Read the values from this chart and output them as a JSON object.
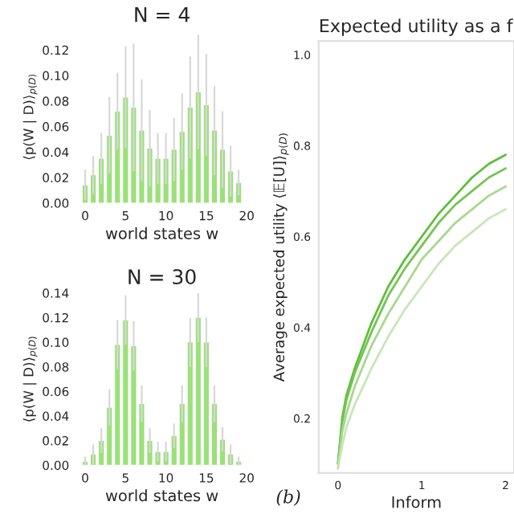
{
  "chart_data": [
    {
      "type": "bar",
      "title": "N = 4",
      "xlabel": "world states w",
      "ylabel": "⟨p(W | D)⟩$_{p(D)}$",
      "x": [
        0,
        1,
        2,
        3,
        4,
        5,
        6,
        7,
        8,
        9,
        10,
        11,
        12,
        13,
        14,
        15,
        16,
        17,
        18,
        19
      ],
      "values": [
        0.014,
        0.022,
        0.035,
        0.053,
        0.072,
        0.083,
        0.075,
        0.057,
        0.043,
        0.035,
        0.035,
        0.042,
        0.056,
        0.075,
        0.087,
        0.077,
        0.057,
        0.042,
        0.025,
        0.016
      ],
      "errors": [
        0.012,
        0.015,
        0.02,
        0.03,
        0.03,
        0.04,
        0.05,
        0.04,
        0.03,
        0.02,
        0.02,
        0.025,
        0.03,
        0.04,
        0.045,
        0.04,
        0.035,
        0.03,
        0.02,
        0.01
      ],
      "color": "#9be07a",
      "xlim": [
        -1,
        20
      ],
      "xticks": [
        0,
        5,
        10,
        15,
        20
      ],
      "ylim": [
        0,
        0.135
      ],
      "yticks": [
        {
          "value": 0,
          "label": "0.00"
        },
        {
          "value": 0.02,
          "label": "0.02"
        },
        {
          "value": 0.04,
          "label": "0.04"
        },
        {
          "value": 0.06,
          "label": "0.06"
        },
        {
          "value": 0.08,
          "label": "0.08"
        },
        {
          "value": 0.1,
          "label": "0.10"
        },
        {
          "value": 0.12,
          "label": "0.12"
        }
      ],
      "grid": false
    },
    {
      "type": "bar",
      "title": "N = 30",
      "xlabel": "world states w",
      "ylabel": "⟨p(W | D)⟩$_{p(D)}$",
      "x": [
        0,
        1,
        2,
        3,
        4,
        5,
        6,
        7,
        8,
        9,
        10,
        11,
        12,
        13,
        14,
        15,
        16,
        17,
        18,
        19
      ],
      "values": [
        0.003,
        0.009,
        0.02,
        0.047,
        0.098,
        0.118,
        0.097,
        0.05,
        0.02,
        0.011,
        0.011,
        0.024,
        0.05,
        0.1,
        0.12,
        0.1,
        0.05,
        0.021,
        0.009,
        0.003
      ],
      "errors": [
        0.004,
        0.008,
        0.01,
        0.015,
        0.02,
        0.02,
        0.02,
        0.015,
        0.01,
        0.008,
        0.008,
        0.01,
        0.015,
        0.02,
        0.02,
        0.02,
        0.015,
        0.01,
        0.008,
        0.004
      ],
      "color": "#9be07a",
      "xlim": [
        -1,
        20
      ],
      "xticks": [
        0,
        5,
        10,
        15,
        20
      ],
      "ylim": [
        0,
        0.14
      ],
      "yticks": [
        {
          "value": 0,
          "label": "0.00"
        },
        {
          "value": 0.02,
          "label": "0.02"
        },
        {
          "value": 0.04,
          "label": "0.04"
        },
        {
          "value": 0.06,
          "label": "0.06"
        },
        {
          "value": 0.08,
          "label": "0.08"
        },
        {
          "value": 0.1,
          "label": "0.10"
        },
        {
          "value": 0.12,
          "label": "0.12"
        },
        {
          "value": 0.14,
          "label": "0.14"
        }
      ],
      "grid": false
    },
    {
      "type": "line",
      "title": "Expected utility as a f",
      "xlabel": "Inform",
      "ylabel": "Average expected utility ⟨𝔼[U]⟩$_{p(D)}$",
      "annotations": [
        "(b)"
      ],
      "x": [
        0,
        0.05,
        0.1,
        0.2,
        0.4,
        0.6,
        0.8,
        1.0,
        1.2,
        1.4,
        1.6,
        1.8,
        2.0
      ],
      "series": [
        {
          "color": "#5cbf38",
          "values": [
            0.1,
            0.2,
            0.25,
            0.31,
            0.41,
            0.49,
            0.55,
            0.6,
            0.65,
            0.69,
            0.73,
            0.76,
            0.78
          ]
        },
        {
          "color": "#72c652",
          "values": [
            0.1,
            0.19,
            0.24,
            0.3,
            0.39,
            0.47,
            0.53,
            0.58,
            0.63,
            0.67,
            0.7,
            0.73,
            0.75
          ]
        },
        {
          "color": "#a8d890",
          "values": [
            0.09,
            0.17,
            0.21,
            0.27,
            0.36,
            0.43,
            0.49,
            0.55,
            0.59,
            0.63,
            0.66,
            0.69,
            0.71
          ]
        },
        {
          "color": "#c8e6b8",
          "values": [
            0.09,
            0.14,
            0.18,
            0.23,
            0.31,
            0.38,
            0.44,
            0.49,
            0.54,
            0.58,
            0.61,
            0.64,
            0.66
          ]
        }
      ],
      "xlim": [
        -0.23,
        2.1
      ],
      "xticks": [
        0,
        1,
        2
      ],
      "ylim": [
        0.08,
        1.03
      ],
      "yticks": [
        {
          "value": 0.2,
          "label": "0.2"
        },
        {
          "value": 0.4,
          "label": "0.4"
        },
        {
          "value": 0.6,
          "label": "0.6"
        },
        {
          "value": 0.8,
          "label": "0.8"
        },
        {
          "value": 1.0,
          "label": "1.0"
        }
      ],
      "grid": false,
      "marker": "none",
      "line_style": "solid"
    }
  ]
}
